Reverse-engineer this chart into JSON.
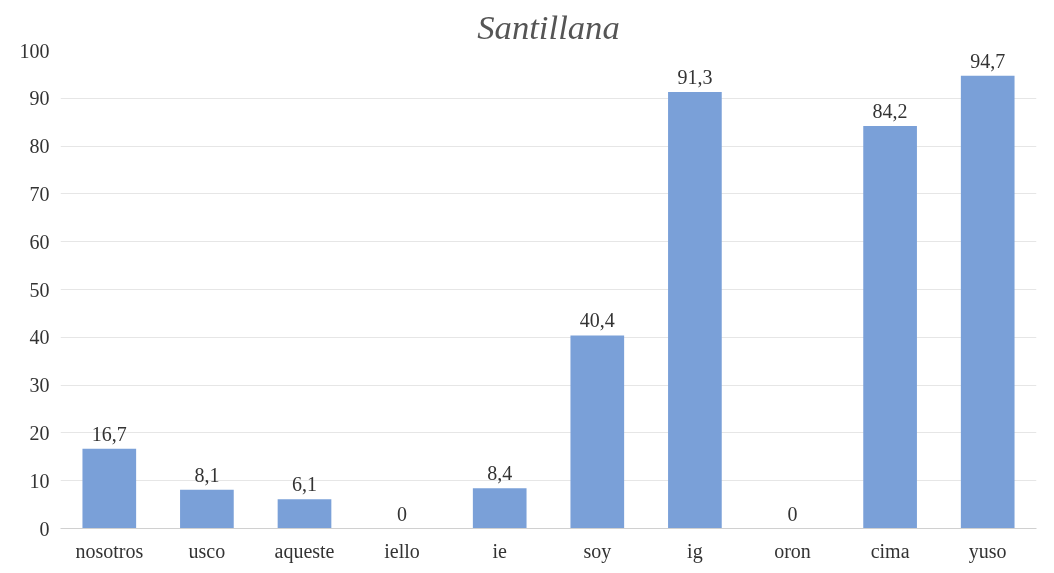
{
  "chart_data": {
    "type": "bar",
    "title": "Santillana",
    "categories": [
      "nosotros",
      "usco",
      "aqueste",
      "iello",
      "ie",
      "soy",
      "ig",
      "oron",
      "cima",
      "yuso"
    ],
    "values": [
      16.7,
      8.1,
      6.1,
      0,
      8.4,
      40.4,
      91.3,
      0,
      84.2,
      94.7
    ],
    "value_labels": [
      "16,7",
      "8,1",
      "6,1",
      "0",
      "8,4",
      "40,4",
      "91,3",
      "0",
      "84,2",
      "94,7"
    ],
    "color": "#7aa0d8",
    "ylim": [
      0,
      100
    ],
    "yticks": [
      0,
      10,
      20,
      30,
      40,
      50,
      60,
      70,
      80,
      90,
      100
    ],
    "grid": "y"
  }
}
